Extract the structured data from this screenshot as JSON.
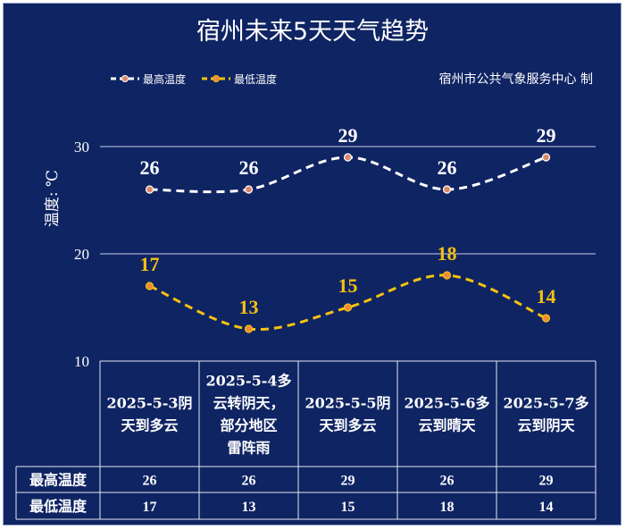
{
  "title": "宿州未来5天天气趋势",
  "source": "宿州市公共气象服务中心  制",
  "colors": {
    "background": "#0f2463",
    "high": "#ffffff",
    "low": "#f5c20f",
    "marker": "#f08a3c"
  },
  "chart_data": {
    "type": "line",
    "categories": [
      "2025-5-3阴天到多云",
      "2025-5-4多云转阴天，部分地区雷阵雨",
      "2025-5-5阴天到多云",
      "2025-5-6多云到晴天",
      "2025-5-7多云到阴天"
    ],
    "category_lines": [
      [
        "2025-5-3阴",
        "天到多云"
      ],
      [
        "2025-5-4多",
        "云转阴天，",
        "部分地区",
        "雷阵雨"
      ],
      [
        "2025-5-5阴",
        "天到多云"
      ],
      [
        "2025-5-6多",
        "云到晴天"
      ],
      [
        "2025-5-7多",
        "云到阴天"
      ]
    ],
    "series": [
      {
        "name": "最高温度",
        "values": [
          26,
          26,
          29,
          26,
          29
        ]
      },
      {
        "name": "最低温度",
        "values": [
          17,
          13,
          15,
          18,
          14
        ]
      }
    ],
    "ylabel": "温度: ℃",
    "ylim": [
      10,
      30
    ],
    "yticks": [
      10,
      20,
      30
    ],
    "grid": true,
    "legend": "top-left"
  }
}
